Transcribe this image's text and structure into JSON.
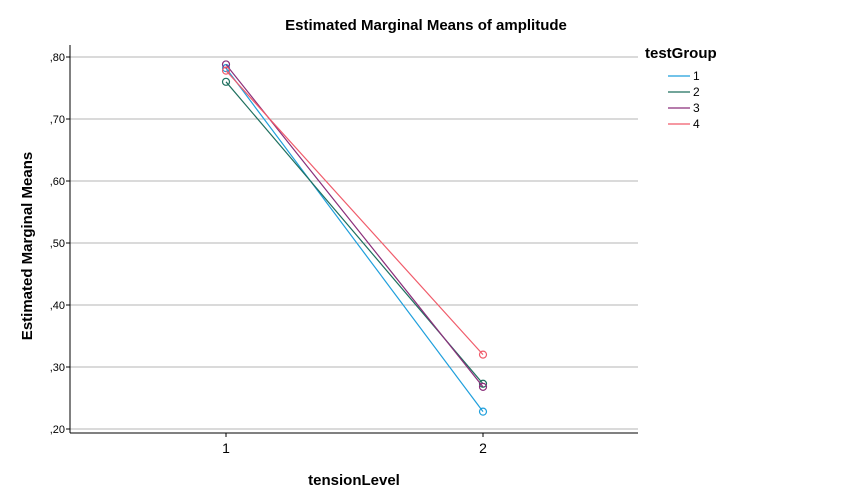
{
  "chart_data": {
    "type": "line",
    "title": "Estimated Marginal Means of amplitude",
    "xlabel": "tensionLevel",
    "ylabel": "Estimated Marginal Means",
    "categories": [
      "1",
      "2"
    ],
    "ylim": [
      0.2,
      0.8
    ],
    "yticks": [
      0.2,
      0.3,
      0.4,
      0.5,
      0.6,
      0.7,
      0.8
    ],
    "ytick_labels": [
      ",20",
      ",30",
      ",40",
      ",50",
      ",60",
      ",70",
      ",80"
    ],
    "grid": true,
    "legend_title": "testGroup",
    "legend_position": "right",
    "series": [
      {
        "name": "1",
        "color": "#1f9fdc",
        "values": [
          0.782,
          0.228
        ]
      },
      {
        "name": "2",
        "color": "#1e6f5e",
        "values": [
          0.76,
          0.273
        ]
      },
      {
        "name": "3",
        "color": "#8a2e7a",
        "values": [
          0.788,
          0.268
        ]
      },
      {
        "name": "4",
        "color": "#f05b6a",
        "values": [
          0.778,
          0.32
        ]
      }
    ]
  }
}
